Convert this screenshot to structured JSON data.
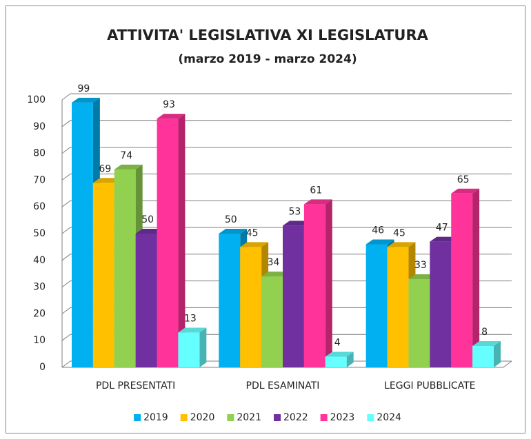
{
  "chart_data": {
    "type": "bar3d",
    "title": "ATTIVITA' LEGISLATIVA XI LEGISLATURA",
    "subtitle": "(marzo 2019 - marzo 2024)",
    "categories": [
      "PDL PRESENTATI",
      "PDL ESAMINATI",
      "LEGGI PUBBLICATE"
    ],
    "series": [
      {
        "name": "2019",
        "color": "#00b0f0",
        "values": [
          99,
          50,
          46
        ]
      },
      {
        "name": "2020",
        "color": "#ffc000",
        "values": [
          69,
          45,
          45
        ]
      },
      {
        "name": "2021",
        "color": "#92d050",
        "values": [
          74,
          34,
          33
        ]
      },
      {
        "name": "2022",
        "color": "#7030a0",
        "values": [
          50,
          53,
          47
        ]
      },
      {
        "name": "2023",
        "color": "#ff3399",
        "values": [
          93,
          61,
          65
        ]
      },
      {
        "name": "2024",
        "color": "#66ffff",
        "values": [
          13,
          4,
          8
        ]
      }
    ],
    "ylim": [
      0,
      100
    ],
    "yticks": [
      0,
      10,
      20,
      30,
      40,
      50,
      60,
      70,
      80,
      90,
      100
    ],
    "grid": true,
    "legend": "bottom"
  }
}
